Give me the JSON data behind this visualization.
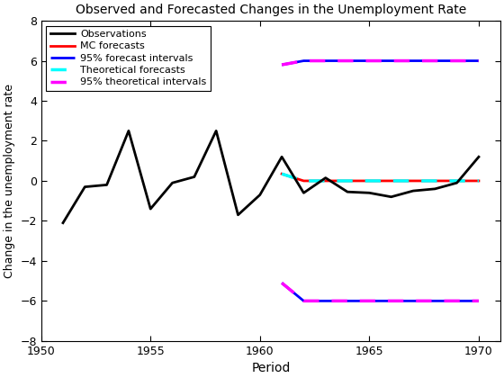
{
  "title": "Observed and Forecasted Changes in the Unemployment Rate",
  "xlabel": "Period",
  "ylabel": "Change in the unemployment rate",
  "xlim": [
    1950,
    1971
  ],
  "ylim": [
    -8,
    8
  ],
  "xticks": [
    1950,
    1955,
    1960,
    1965,
    1970
  ],
  "yticks": [
    -8,
    -6,
    -4,
    -2,
    0,
    2,
    4,
    6,
    8
  ],
  "obs_x": [
    1951,
    1952,
    1953,
    1954,
    1955,
    1956,
    1957,
    1958,
    1959,
    1960,
    1961,
    1962,
    1963,
    1964,
    1965,
    1966,
    1967,
    1968,
    1969,
    1970
  ],
  "obs_y": [
    -2.1,
    -0.3,
    -0.2,
    2.5,
    -1.4,
    -0.1,
    0.2,
    2.5,
    -1.7,
    -0.7,
    1.2,
    -0.6,
    0.15,
    -0.55,
    -0.6,
    -0.8,
    -0.5,
    -0.4,
    -0.1,
    1.2
  ],
  "mc_x": [
    1961,
    1962,
    1963,
    1964,
    1965,
    1966,
    1967,
    1968,
    1969,
    1970
  ],
  "mc_y": [
    0.35,
    0.0,
    0.0,
    0.0,
    0.0,
    0.0,
    0.0,
    0.0,
    0.0,
    0.0
  ],
  "theory_x": [
    1961,
    1962,
    1963,
    1964,
    1965,
    1966,
    1967,
    1968,
    1969,
    1970
  ],
  "theory_y": [
    0.35,
    0.0,
    0.0,
    0.0,
    0.0,
    0.0,
    0.0,
    0.0,
    0.0,
    0.0
  ],
  "upper_ci_x": [
    1961,
    1962,
    1963,
    1964,
    1965,
    1966,
    1967,
    1968,
    1969,
    1970
  ],
  "upper_ci_y": [
    5.8,
    6.0,
    6.0,
    6.0,
    6.0,
    6.0,
    6.0,
    6.0,
    6.0,
    6.0
  ],
  "lower_ci_x": [
    1961,
    1962,
    1963,
    1964,
    1965,
    1966,
    1967,
    1968,
    1969,
    1970
  ],
  "lower_ci_y": [
    -5.1,
    -6.0,
    -6.0,
    -6.0,
    -6.0,
    -6.0,
    -6.0,
    -6.0,
    -6.0,
    -6.0
  ],
  "upper_theory_x": [
    1961,
    1962,
    1963,
    1964,
    1965,
    1966,
    1967,
    1968,
    1969,
    1970
  ],
  "upper_theory_y": [
    5.8,
    6.0,
    6.0,
    6.0,
    6.0,
    6.0,
    6.0,
    6.0,
    6.0,
    6.0
  ],
  "lower_theory_x": [
    1961,
    1962,
    1963,
    1964,
    1965,
    1966,
    1967,
    1968,
    1969,
    1970
  ],
  "lower_theory_y": [
    -5.1,
    -6.0,
    -6.0,
    -6.0,
    -6.0,
    -6.0,
    -6.0,
    -6.0,
    -6.0,
    -6.0
  ],
  "obs_color": "#000000",
  "mc_color": "#ff0000",
  "ci_color": "#0000ff",
  "theory_color": "#00ffff",
  "theory_ci_color": "#ff00ff",
  "bg_color": "#ffffff"
}
